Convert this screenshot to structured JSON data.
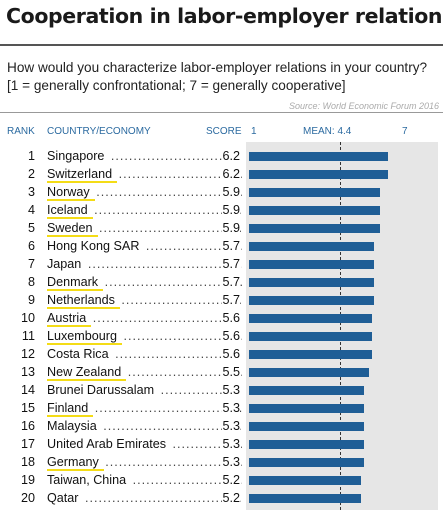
{
  "title": "Cooperation in labor-employer relations",
  "subtitle": "How would you characterize labor-employer relations in your country? [1 = generally confrontational; 7 = generally cooperative]",
  "source": "Source: World Economic Forum 2016",
  "headers": {
    "rank": "RANK",
    "country": "COUNTRY/ECONOMY",
    "score": "SCORE",
    "axis_min": "1",
    "mean": "MEAN: 4.4",
    "axis_max": "7"
  },
  "colors": {
    "bar": "#1f5e96",
    "highlight": "#f4dc16",
    "header": "#2b6aa0"
  },
  "chart_data": {
    "type": "bar",
    "orientation": "horizontal",
    "xlim": [
      1,
      7
    ],
    "mean": 4.4,
    "rows": [
      {
        "rank": "1",
        "country": "Singapore",
        "score": "6.2",
        "value": 6.2,
        "highlighted": false
      },
      {
        "rank": "2",
        "country": "Switzerland",
        "score": "6.2",
        "value": 6.2,
        "highlighted": true
      },
      {
        "rank": "3",
        "country": "Norway",
        "score": "5.9",
        "value": 5.9,
        "highlighted": true
      },
      {
        "rank": "4",
        "country": "Iceland",
        "score": "5.9",
        "value": 5.9,
        "highlighted": true
      },
      {
        "rank": "5",
        "country": "Sweden",
        "score": "5.9",
        "value": 5.9,
        "highlighted": true
      },
      {
        "rank": "6",
        "country": "Hong Kong SAR",
        "score": "5.7",
        "value": 5.7,
        "highlighted": false
      },
      {
        "rank": "7",
        "country": "Japan",
        "score": "5.7",
        "value": 5.7,
        "highlighted": false
      },
      {
        "rank": "8",
        "country": "Denmark",
        "score": "5.7",
        "value": 5.7,
        "highlighted": true
      },
      {
        "rank": "9",
        "country": "Netherlands",
        "score": "5.7",
        "value": 5.7,
        "highlighted": true
      },
      {
        "rank": "10",
        "country": "Austria",
        "score": "5.6",
        "value": 5.6,
        "highlighted": true
      },
      {
        "rank": "11",
        "country": "Luxembourg",
        "score": "5.6",
        "value": 5.6,
        "highlighted": true
      },
      {
        "rank": "12",
        "country": "Costa Rica",
        "score": "5.6",
        "value": 5.6,
        "highlighted": false
      },
      {
        "rank": "13",
        "country": "New Zealand",
        "score": "5.5",
        "value": 5.5,
        "highlighted": true
      },
      {
        "rank": "14",
        "country": "Brunei Darussalam",
        "score": "5.3",
        "value": 5.3,
        "highlighted": false
      },
      {
        "rank": "15",
        "country": "Finland",
        "score": "5.3",
        "value": 5.3,
        "highlighted": true
      },
      {
        "rank": "16",
        "country": "Malaysia",
        "score": "5.3",
        "value": 5.3,
        "highlighted": false
      },
      {
        "rank": "17",
        "country": "United Arab Emirates",
        "score": "5.3",
        "value": 5.3,
        "highlighted": false
      },
      {
        "rank": "18",
        "country": "Germany",
        "score": "5.3",
        "value": 5.3,
        "highlighted": true
      },
      {
        "rank": "19",
        "country": "Taiwan, China",
        "score": "5.2",
        "value": 5.2,
        "highlighted": false
      },
      {
        "rank": "20",
        "country": "Qatar",
        "score": "5.2",
        "value": 5.2,
        "highlighted": false
      }
    ]
  }
}
